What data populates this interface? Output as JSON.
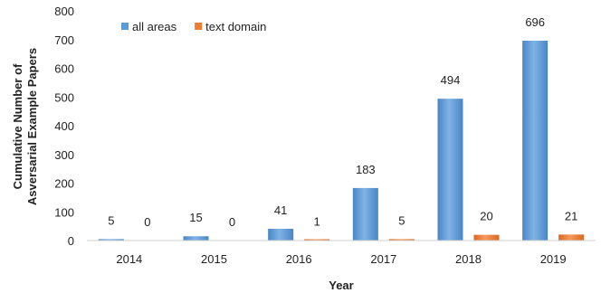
{
  "chart_data": {
    "type": "bar",
    "title": "",
    "xlabel": "Year",
    "ylabel_lines": [
      "Cumulative Number of",
      "Asversarial Example Papers"
    ],
    "categories": [
      "2014",
      "2015",
      "2016",
      "2017",
      "2018",
      "2019"
    ],
    "series": [
      {
        "name": "all areas",
        "values": [
          5,
          15,
          41,
          183,
          494,
          696
        ],
        "color": "#5b9bd5"
      },
      {
        "name": "text domain",
        "values": [
          0,
          0,
          1,
          5,
          20,
          21
        ],
        "color": "#ed7d31"
      }
    ],
    "ylim": [
      0,
      800
    ],
    "yticks": [
      0,
      100,
      200,
      300,
      400,
      500,
      600,
      700,
      800
    ],
    "grid": false,
    "legend_position": "top-left",
    "data_labels": true
  }
}
